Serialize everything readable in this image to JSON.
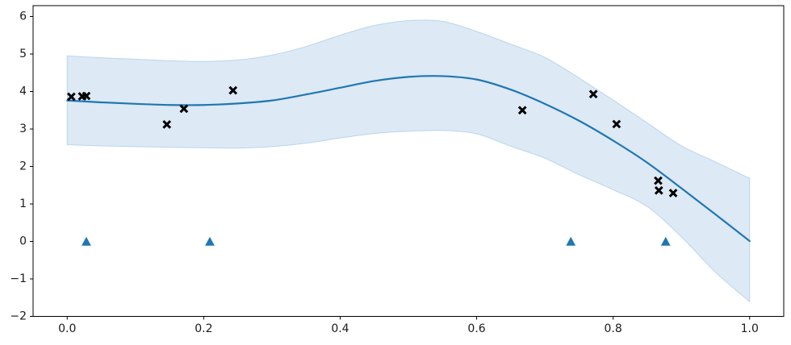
{
  "figure": {
    "kind": "matplotlib-style plot",
    "description": "Gaussian process regression posterior: mean line, credible band, training points (x), inducing point locations (triangles)",
    "background_color": "#ffffff"
  },
  "chart_data": {
    "type": "line",
    "title": "",
    "xlabel": "",
    "ylabel": "",
    "grid": false,
    "legend_position": "none",
    "xlim": [
      -0.05,
      1.05
    ],
    "ylim": [
      -2.0,
      6.29
    ],
    "axis_color": "#000000",
    "tick_label_color": "#1a1a1a",
    "tick_label_font_size": 14,
    "x_ticks": [
      0.0,
      0.2,
      0.4,
      0.6,
      0.8,
      1.0
    ],
    "x_tick_labels": [
      "0.0",
      "0.2",
      "0.4",
      "0.6",
      "0.8",
      "1.0"
    ],
    "y_ticks": [
      -2,
      -1,
      0,
      1,
      2,
      3,
      4,
      5,
      6
    ],
    "y_tick_labels": [
      "−2",
      "−1",
      "0",
      "1",
      "2",
      "3",
      "4",
      "5",
      "6"
    ],
    "x": [
      0.0,
      0.05,
      0.1,
      0.15,
      0.2,
      0.25,
      0.3,
      0.35,
      0.4,
      0.45,
      0.5,
      0.55,
      0.6,
      0.65,
      0.7,
      0.75,
      0.8,
      0.85,
      0.9,
      0.95,
      1.0
    ],
    "series": [
      {
        "name": "posterior mean",
        "type": "line",
        "color": "#1f77b4",
        "line_width": 2.2,
        "y": [
          3.76,
          3.71,
          3.67,
          3.64,
          3.64,
          3.68,
          3.76,
          3.92,
          4.1,
          4.28,
          4.39,
          4.41,
          4.32,
          4.05,
          3.67,
          3.22,
          2.69,
          2.1,
          1.42,
          0.72,
          0.01
        ]
      }
    ],
    "confidence_band": {
      "name": "credible interval",
      "fill_color": "#dde9f5",
      "edge_color": "#b9d5ed",
      "edge_width": 1,
      "upper": [
        4.95,
        4.9,
        4.86,
        4.82,
        4.8,
        4.84,
        4.97,
        5.2,
        5.5,
        5.76,
        5.89,
        5.87,
        5.6,
        5.26,
        4.91,
        4.36,
        3.77,
        3.16,
        2.55,
        2.12,
        1.68
      ],
      "lower": [
        2.58,
        2.55,
        2.53,
        2.51,
        2.5,
        2.49,
        2.53,
        2.62,
        2.76,
        2.88,
        2.94,
        2.96,
        2.87,
        2.54,
        2.22,
        1.78,
        1.38,
        0.93,
        0.12,
        -0.82,
        -1.61
      ]
    },
    "scatter_series": [
      {
        "name": "training data",
        "marker": "x",
        "color": "#000000",
        "marker_half_size": 4.3,
        "marker_stroke_width": 3,
        "points": [
          [
            0.006,
            3.86
          ],
          [
            0.022,
            3.87
          ],
          [
            0.028,
            3.88
          ],
          [
            0.146,
            3.12
          ],
          [
            0.171,
            3.54
          ],
          [
            0.243,
            4.03
          ],
          [
            0.667,
            3.5
          ],
          [
            0.771,
            3.93
          ],
          [
            0.805,
            3.13
          ],
          [
            0.866,
            1.62
          ],
          [
            0.867,
            1.36
          ],
          [
            0.888,
            1.29
          ]
        ]
      },
      {
        "name": "inducing point locations",
        "marker": "triangle-up",
        "color": "#1f77b4",
        "points": [
          [
            0.028,
            0
          ],
          [
            0.209,
            0
          ],
          [
            0.738,
            0
          ],
          [
            0.877,
            0
          ]
        ]
      }
    ]
  }
}
